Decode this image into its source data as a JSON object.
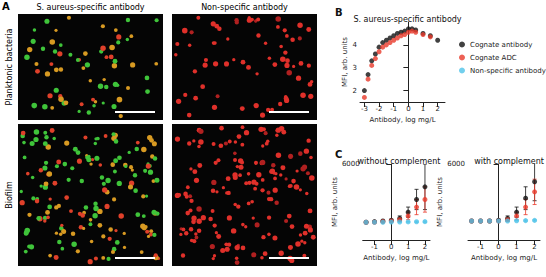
{
  "panel_a": {
    "label": "A",
    "columns": [
      "S. aureus-specific antibody",
      "Non-specific antibody"
    ],
    "rows": [
      "Planktonic bacteria",
      "Biofilm"
    ]
  },
  "chart_data": [
    {
      "type": "scatter",
      "annotation": "B",
      "title": "S. aureus-specific antibody",
      "xlabel": "Antibody, log mg/L",
      "ylabel": "MFI, arb. units",
      "x": [
        -3,
        -2.75,
        -2.5,
        -2.25,
        -2,
        -1.75,
        -1.5,
        -1.25,
        -1,
        -0.75,
        -0.5,
        -0.25,
        0,
        0.25,
        0.5,
        1,
        1.5,
        2
      ],
      "xlim": [
        -3.3,
        2.5
      ],
      "xticks": [
        -3,
        -2,
        -1,
        0,
        1,
        2
      ],
      "ylim": [
        1.5,
        5
      ],
      "yticks": [
        2,
        3,
        4
      ],
      "legend": "right",
      "series": [
        {
          "name": "Cognate antibody",
          "color": "#111111",
          "values": [
            2.0,
            2.7,
            3.3,
            3.6,
            3.9,
            4.1,
            4.2,
            4.3,
            4.4,
            4.5,
            4.55,
            4.6,
            4.7,
            4.7,
            4.65,
            4.5,
            4.4,
            4.2
          ]
        },
        {
          "name": "Cognate ADC",
          "color": "#e8392a",
          "values": [
            1.7,
            2.5,
            3.1,
            3.4,
            3.7,
            3.9,
            4.0,
            4.1,
            4.2,
            4.3,
            4.4,
            4.45,
            4.55,
            4.6,
            4.55,
            4.45,
            4.35,
            null
          ]
        },
        {
          "name": "Non-specific antibody",
          "color": "#4fc3e8",
          "values": [
            null,
            null,
            null,
            null,
            null,
            null,
            null,
            null,
            null,
            null,
            null,
            null,
            null,
            null,
            null,
            null,
            null,
            null
          ]
        }
      ]
    },
    {
      "type": "scatter",
      "annotation": "C",
      "title": "without complement",
      "xlabel": "Antibody, log mg/L",
      "ylabel": "MFI, arb. units",
      "x": [
        -1.5,
        -1,
        -0.5,
        0,
        0.5,
        1,
        1.5,
        2
      ],
      "xlim": [
        -1.7,
        2.3
      ],
      "xticks": [
        -1,
        0,
        1,
        2
      ],
      "ylim": [
        0,
        6000
      ],
      "yticks": [
        6000
      ],
      "series": [
        {
          "name": "Cognate antibody",
          "color": "#111111",
          "values": [
            1400,
            1450,
            1500,
            1550,
            1700,
            2200,
            3200,
            4200
          ],
          "errors": [
            0,
            0,
            50,
            100,
            200,
            400,
            800,
            1800
          ]
        },
        {
          "name": "Cognate ADC",
          "color": "#e8392a",
          "values": [
            1400,
            1400,
            1450,
            1500,
            1600,
            1900,
            2600,
            3200
          ],
          "errors": [
            0,
            0,
            50,
            50,
            100,
            300,
            600,
            1000
          ]
        },
        {
          "name": "Non-specific antibody",
          "color": "#4fc3e8",
          "values": [
            1400,
            1400,
            1400,
            1420,
            1420,
            1430,
            1440,
            1450
          ],
          "errors": [
            0,
            0,
            0,
            0,
            0,
            0,
            50,
            50
          ]
        }
      ]
    },
    {
      "type": "scatter",
      "title": "with complement",
      "xlabel": "Antibody, log mg/L",
      "ylabel": "MFI, arb. units",
      "x": [
        -1.5,
        -1,
        -0.5,
        0,
        0.5,
        1,
        1.5,
        2
      ],
      "xlim": [
        -1.7,
        2.3
      ],
      "xticks": [
        -1,
        0,
        1,
        2
      ],
      "ylim": [
        0,
        6000
      ],
      "yticks": [
        6000
      ],
      "series": [
        {
          "name": "Cognate antibody",
          "color": "#111111",
          "values": [
            1500,
            1500,
            1500,
            1550,
            1700,
            2200,
            3300,
            4600
          ],
          "errors": [
            0,
            0,
            50,
            100,
            200,
            400,
            900,
            1500
          ]
        },
        {
          "name": "Cognate ADC",
          "color": "#e8392a",
          "values": [
            1500,
            1500,
            1500,
            1500,
            1600,
            1900,
            2600,
            3800
          ],
          "errors": [
            0,
            0,
            50,
            50,
            100,
            300,
            600,
            1000
          ]
        },
        {
          "name": "Non-specific antibody",
          "color": "#4fc3e8",
          "values": [
            1500,
            1500,
            1500,
            1500,
            1500,
            1520,
            1530,
            1550
          ],
          "errors": [
            0,
            0,
            0,
            0,
            0,
            0,
            50,
            50
          ]
        }
      ]
    }
  ]
}
